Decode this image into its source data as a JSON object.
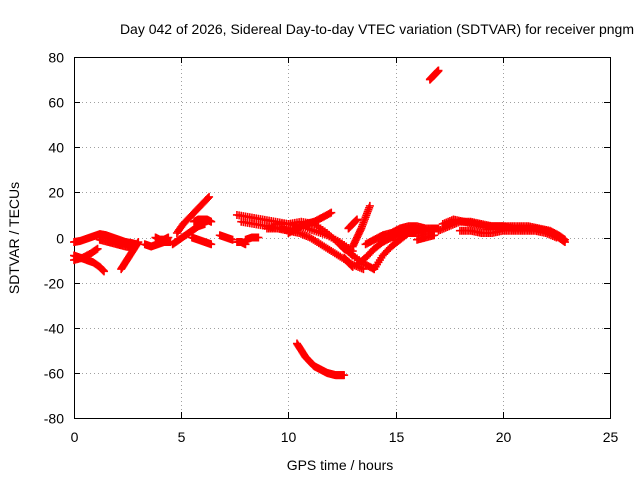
{
  "chart_data": {
    "type": "scatter",
    "title": "Day 042 of 2026, Sidereal Day-to-day VTEC variation (SDTVAR) for receiver pngm",
    "xlabel": "GPS time / hours",
    "ylabel": "SDTVAR / TECUs",
    "xlim": [
      0,
      25
    ],
    "ylim": [
      -80,
      80
    ],
    "x_ticks": [
      0,
      5,
      10,
      15,
      20,
      25
    ],
    "y_ticks": [
      -80,
      -60,
      -40,
      -20,
      0,
      20,
      40,
      60,
      80
    ],
    "grid": true,
    "marker": "plus",
    "series": [
      {
        "name": "SDTVAR",
        "color": "#ff0000",
        "segments": [
          {
            "x": [
              0.0,
              0.3,
              0.6,
              0.9,
              1.2,
              1.5,
              1.8,
              2.1,
              2.4,
              2.7,
              2.9
            ],
            "y": [
              -2,
              -1.5,
              -0.5,
              0.5,
              1.5,
              1,
              0,
              -1,
              -2,
              -2.5,
              -3
            ]
          },
          {
            "x": [
              0.0,
              0.3,
              0.6,
              0.9,
              1.2,
              1.4
            ],
            "y": [
              -8,
              -9,
              -10,
              -11,
              -13,
              -15
            ]
          },
          {
            "x": [
              0.0,
              0.4,
              0.8,
              1.1
            ],
            "y": [
              -10,
              -9,
              -7,
              -5
            ]
          },
          {
            "x": [
              1.2,
              1.6,
              2.0,
              2.4,
              2.8
            ],
            "y": [
              -1,
              -2,
              -3,
              -4,
              -4.5
            ]
          },
          {
            "x": [
              2.2,
              2.4,
              2.6,
              2.8,
              3.0
            ],
            "y": [
              -14,
              -11,
              -8,
              -5,
              -2
            ]
          },
          {
            "x": [
              3.3,
              3.6,
              3.9,
              4.2,
              4.5
            ],
            "y": [
              -3,
              -4,
              -3,
              -2,
              -2
            ]
          },
          {
            "x": [
              3.8,
              4.0,
              4.2,
              4.4
            ],
            "y": [
              0,
              -1,
              -1,
              0
            ]
          },
          {
            "x": [
              4.6,
              4.9,
              5.2,
              5.5,
              5.8,
              6.1
            ],
            "y": [
              -3,
              -1,
              1,
              3,
              5,
              6
            ]
          },
          {
            "x": [
              4.8,
              5.1,
              5.4,
              5.7,
              6.0,
              6.3
            ],
            "y": [
              2,
              6,
              9,
              12,
              15,
              18
            ]
          },
          {
            "x": [
              5.6,
              5.8,
              6.0,
              6.2,
              6.4
            ],
            "y": [
              7,
              8,
              8,
              8,
              7
            ]
          },
          {
            "x": [
              5.5,
              5.8,
              6.1,
              6.4
            ],
            "y": [
              0,
              -1,
              -2,
              -3
            ]
          },
          {
            "x": [
              6.8,
              7.1,
              7.4
            ],
            "y": [
              1,
              0,
              -1
            ]
          },
          {
            "x": [
              7.6,
              7.8,
              8.0
            ],
            "y": [
              -2,
              -2,
              -3
            ]
          },
          {
            "x": [
              8.0,
              8.3,
              8.6
            ],
            "y": [
              -1,
              0,
              0
            ]
          },
          {
            "x": [
              7.6,
              8.2,
              8.8,
              9.4,
              10.0,
              10.6,
              11.2,
              11.8,
              12.4,
              13.0
            ],
            "y": [
              10,
              9,
              8,
              7,
              6,
              5,
              3,
              1,
              -2,
              -6
            ]
          },
          {
            "x": [
              7.8,
              8.4,
              9.0,
              9.6,
              10.2
            ],
            "y": [
              7,
              6,
              5,
              4,
              4
            ]
          },
          {
            "x": [
              9.0,
              9.5,
              10.0,
              10.5,
              11.0,
              11.5,
              12.0,
              12.5,
              13.0,
              13.5
            ],
            "y": [
              4,
              4,
              3,
              2,
              0,
              -3,
              -6,
              -9,
              -12,
              -14
            ]
          },
          {
            "x": [
              9.4,
              10.0,
              10.6,
              11.2,
              11.8,
              12.4,
              13.0,
              13.6,
              14.0
            ],
            "y": [
              6,
              6,
              7,
              6,
              2,
              -3,
              -8,
              -12,
              -14
            ]
          },
          {
            "x": [
              10.0,
              10.4,
              10.8,
              11.2,
              11.6,
              12.0
            ],
            "y": [
              2,
              4,
              6,
              7,
              9,
              11
            ]
          },
          {
            "x": [
              10.4,
              10.6,
              10.8,
              11.0,
              11.2,
              11.4,
              11.6,
              11.8,
              12.0,
              12.2,
              12.4,
              12.6
            ],
            "y": [
              -47,
              -50,
              -53,
              -55,
              -57,
              -58,
              -59,
              -60,
              -60.5,
              -61,
              -61,
              -61
            ]
          },
          {
            "x": [
              12.6,
              12.8,
              13.0
            ],
            "y": [
              -9,
              -11,
              -13
            ]
          },
          {
            "x": [
              12.8,
              13.0,
              13.2
            ],
            "y": [
              4,
              6,
              8
            ]
          },
          {
            "x": [
              12.4,
              12.6,
              12.8,
              13.0
            ],
            "y": [
              -3,
              -5,
              -6,
              -8
            ]
          },
          {
            "x": [
              13.0,
              13.2,
              13.4,
              13.6,
              13.8
            ],
            "y": [
              -4,
              0,
              4,
              9,
              14
            ]
          },
          {
            "x": [
              13.2,
              13.6,
              14.0,
              14.4,
              14.8,
              15.2,
              15.6,
              16.0,
              16.4,
              16.8
            ],
            "y": [
              -12,
              -9,
              -5,
              -2,
              0,
              1,
              2,
              2,
              3,
              3
            ]
          },
          {
            "x": [
              13.6,
              14.0,
              14.4,
              14.8,
              15.2,
              15.6,
              16.0
            ],
            "y": [
              -3,
              -1,
              1,
              2,
              3,
              4,
              4
            ]
          },
          {
            "x": [
              14.0,
              14.4,
              14.8,
              15.2,
              15.6,
              16.0
            ],
            "y": [
              -14,
              -8,
              -4,
              -1,
              2,
              4
            ]
          },
          {
            "x": [
              14.8,
              15.2,
              15.6,
              16.0,
              16.4,
              16.8,
              17.0
            ],
            "y": [
              2,
              4,
              5,
              5,
              4,
              4,
              4
            ]
          },
          {
            "x": [
              16.0,
              16.4,
              16.8
            ],
            "y": [
              -1,
              0,
              1
            ]
          },
          {
            "x": [
              16.6,
              16.7,
              16.8,
              16.9,
              17.0
            ],
            "y": [
              70,
              71,
              72,
              73,
              74
            ]
          },
          {
            "x": [
              17.0,
              17.5,
              18.0,
              18.5,
              19.0,
              19.5,
              20.0,
              20.5,
              21.0,
              21.5,
              22.0,
              22.3,
              22.6,
              22.9
            ],
            "y": [
              3,
              5,
              7,
              7,
              6,
              5,
              5,
              4,
              4,
              4,
              3,
              2,
              0,
              -2
            ]
          },
          {
            "x": [
              17.2,
              17.7,
              18.2,
              18.7,
              19.2,
              19.7,
              20.2,
              20.7,
              21.2,
              21.7,
              22.2,
              22.6,
              22.9
            ],
            "y": [
              6,
              8,
              7,
              6,
              5,
              5,
              5,
              5,
              5,
              4,
              3,
              1,
              -1
            ]
          },
          {
            "x": [
              18.0,
              18.5,
              19.0,
              19.5,
              20.0,
              20.5,
              21.0,
              21.5,
              22.0,
              22.5
            ],
            "y": [
              3,
              3,
              2,
              2,
              3,
              3,
              3,
              3,
              2,
              0
            ]
          }
        ]
      }
    ]
  }
}
